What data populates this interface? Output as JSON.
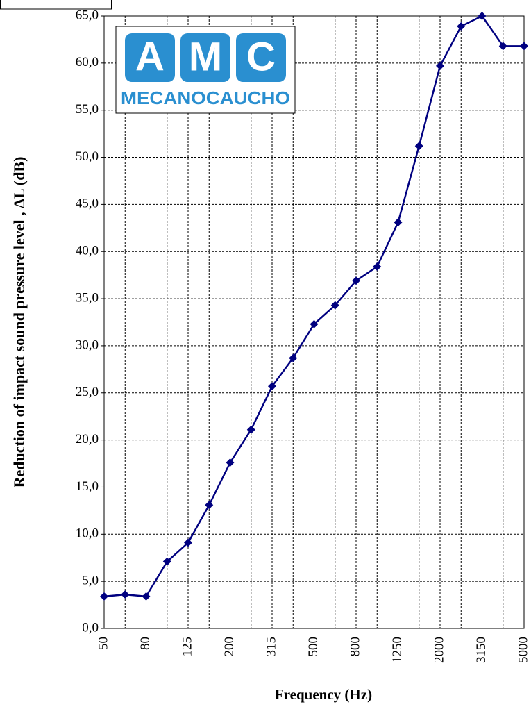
{
  "chart_data": {
    "type": "line",
    "x_label": "Frequency (Hz)",
    "y_label": "Reduction of impact sound pressure level , ΔL (dB)",
    "logo": {
      "letters": [
        "A",
        "M",
        "C"
      ],
      "name": "MECANOCAUCHO"
    },
    "categories": [
      "50",
      null,
      "80",
      null,
      "125",
      null,
      "200",
      null,
      "315",
      null,
      "500",
      null,
      "800",
      null,
      "1250",
      null,
      "2000",
      null,
      "3150",
      null,
      "5000"
    ],
    "series": [
      {
        "color": "#000080",
        "values": [
          3.4,
          3.6,
          3.4,
          7.1,
          9.1,
          13.1,
          17.6,
          21.1,
          25.7,
          28.7,
          32.3,
          34.3,
          36.9,
          38.4,
          43.1,
          51.2,
          59.7,
          63.9,
          65.0,
          61.8,
          61.8
        ]
      }
    ],
    "ylim": [
      0,
      65
    ],
    "yticks": [
      {
        "value": 0,
        "label": "0,0"
      },
      {
        "value": 5,
        "label": "5,0"
      },
      {
        "value": 10,
        "label": "10,0"
      },
      {
        "value": 15,
        "label": "15,0"
      },
      {
        "value": 20,
        "label": "20,0"
      },
      {
        "value": 25,
        "label": "25,0"
      },
      {
        "value": 30,
        "label": "30,0"
      },
      {
        "value": 35,
        "label": "35,0"
      },
      {
        "value": 40,
        "label": "40,0"
      },
      {
        "value": 45,
        "label": "45,0"
      },
      {
        "value": 50,
        "label": "50,0"
      },
      {
        "value": 55,
        "label": "55,0"
      },
      {
        "value": 60,
        "label": "60,0"
      },
      {
        "value": 65,
        "label": "65,0"
      }
    ],
    "grid": true
  }
}
